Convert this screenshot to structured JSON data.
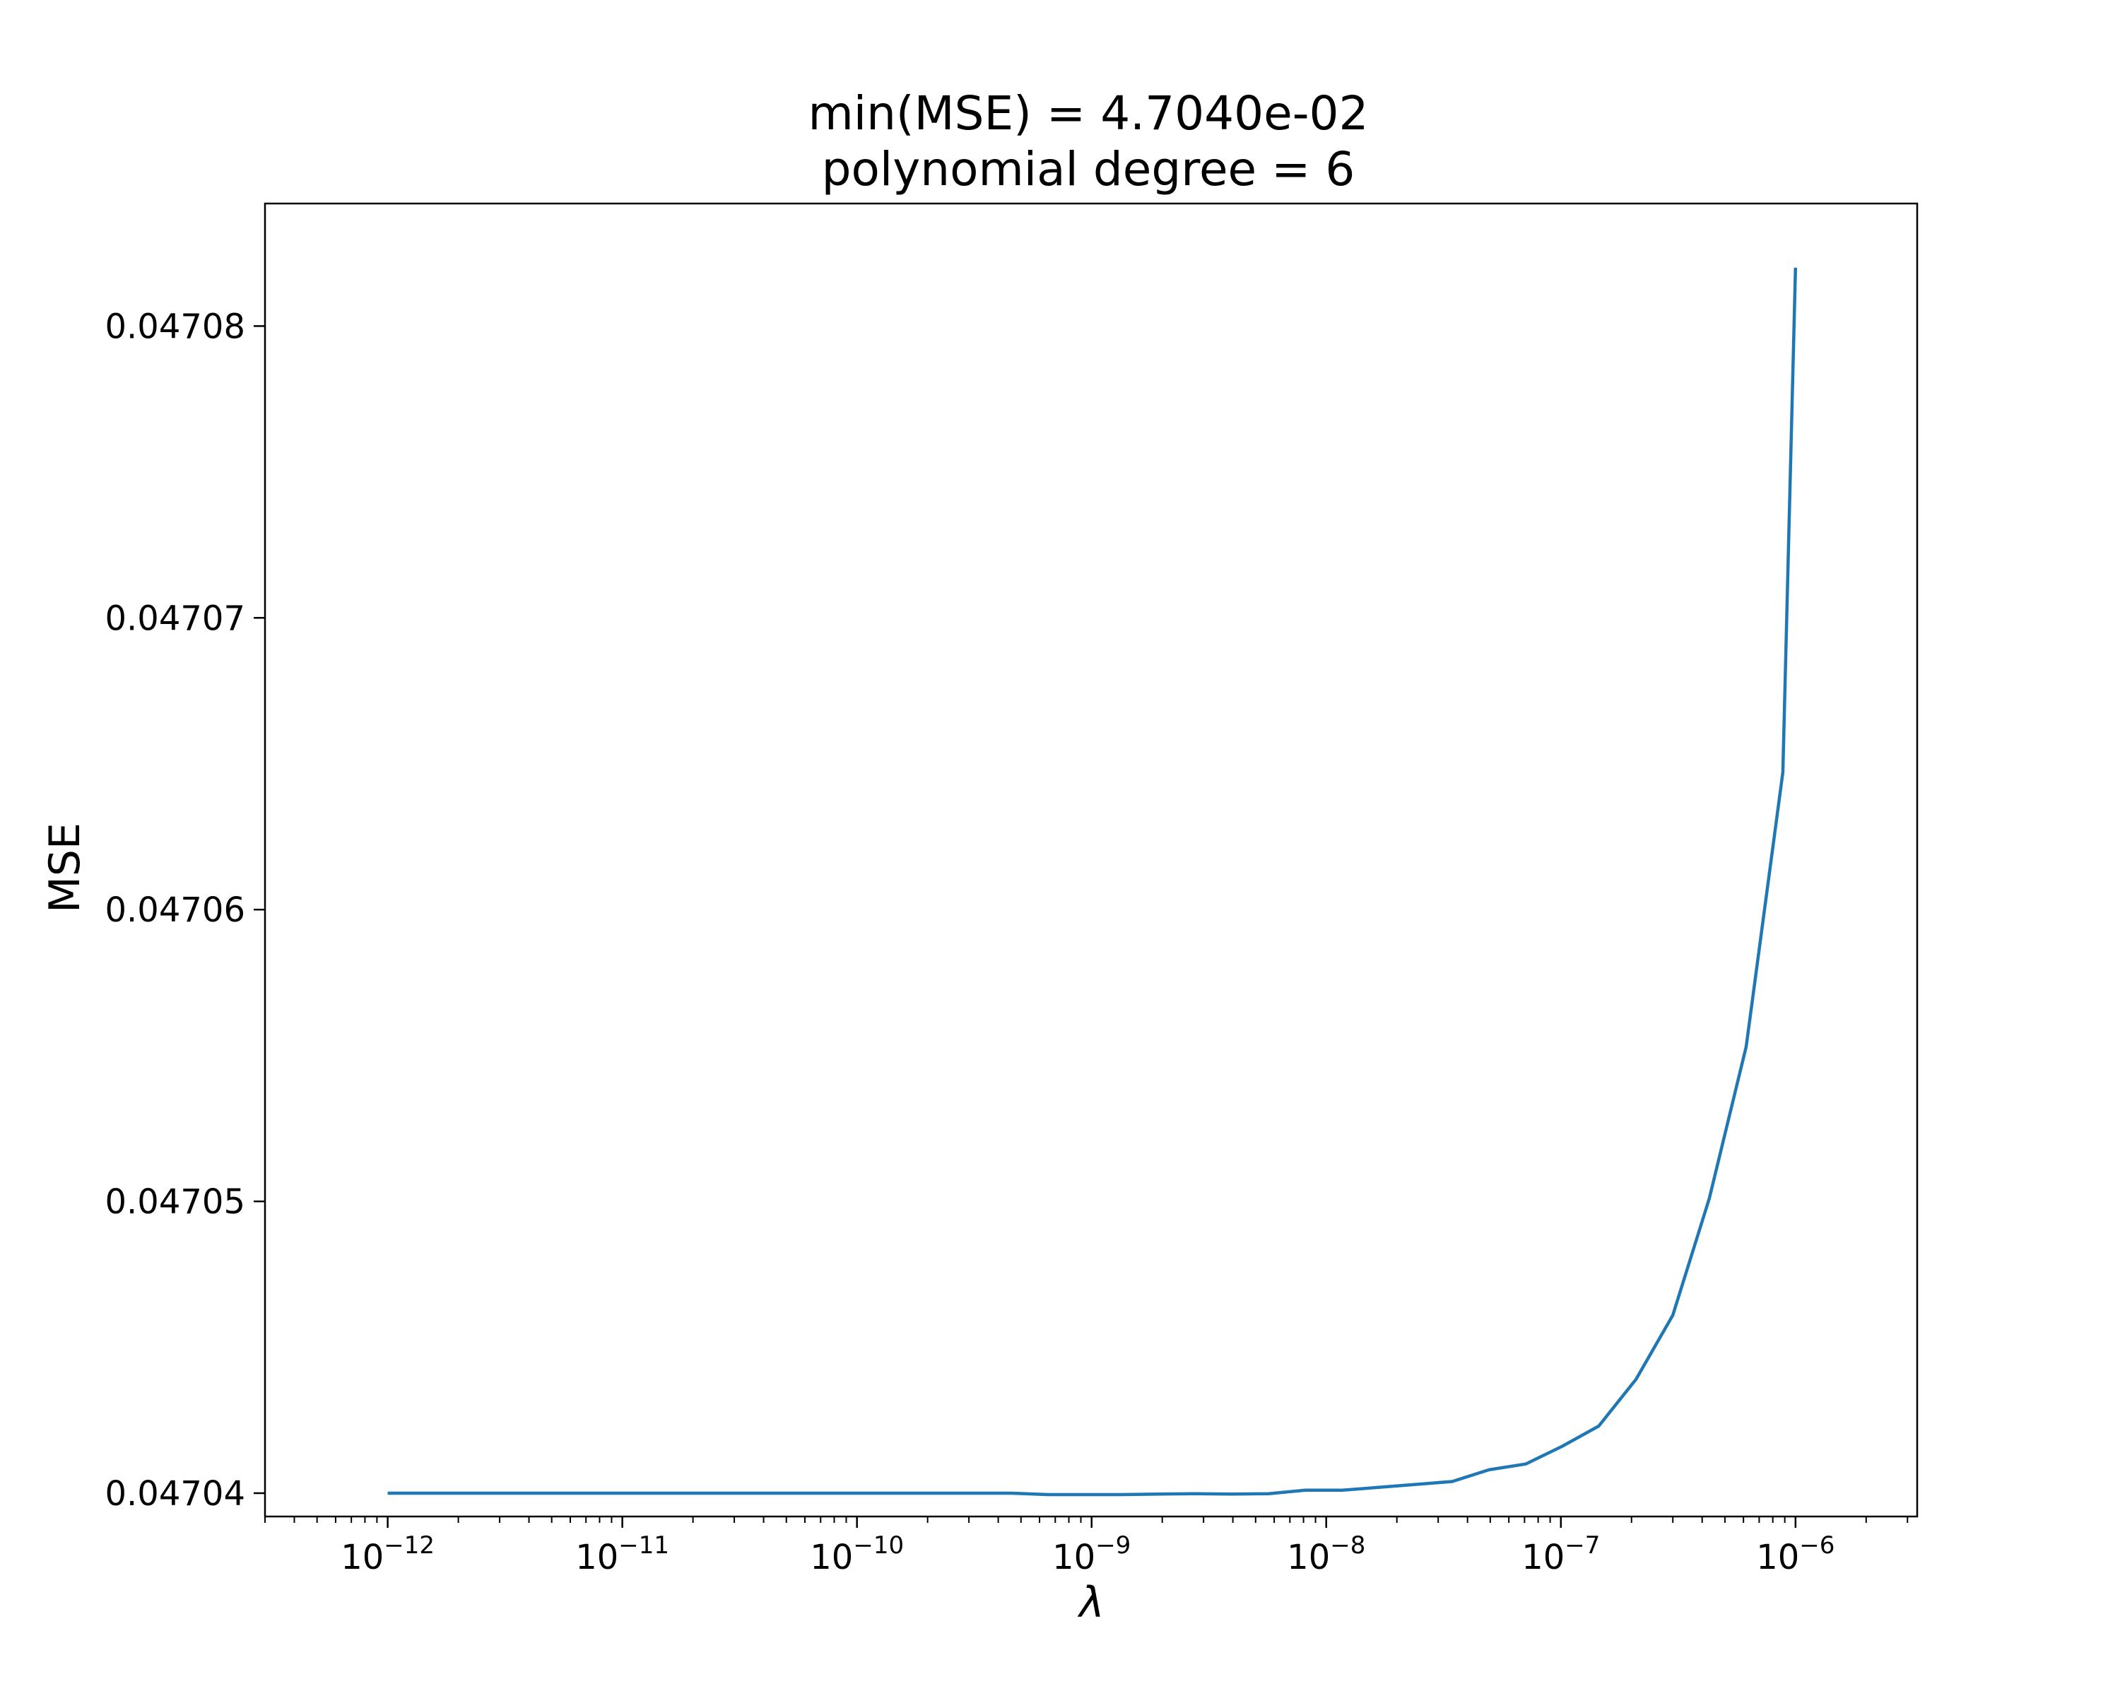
{
  "chart_data": {
    "type": "line",
    "title": [
      "min(MSE) = 4.7040e-02",
      "polynomial degree = 6"
    ],
    "xlabel": "λ",
    "ylabel": "MSE",
    "xscale": "log",
    "xlim": [
      3e-13,
      3.3e-06
    ],
    "ylim": [
      0.0470392,
      0.0470842
    ],
    "grid": false,
    "x_ticks": [
      {
        "base": "10",
        "exp": "−12",
        "value": 1e-12
      },
      {
        "base": "10",
        "exp": "−11",
        "value": 1e-11
      },
      {
        "base": "10",
        "exp": "−10",
        "value": 1e-10
      },
      {
        "base": "10",
        "exp": "−9",
        "value": 1e-09
      },
      {
        "base": "10",
        "exp": "−8",
        "value": 1e-08
      },
      {
        "base": "10",
        "exp": "−7",
        "value": 1e-07
      },
      {
        "base": "10",
        "exp": "−6",
        "value": 1e-06
      }
    ],
    "y_ticks": [
      {
        "label": "0.04704",
        "value": 0.04704
      },
      {
        "label": "0.04705",
        "value": 0.04705
      },
      {
        "label": "0.04706",
        "value": 0.04706
      },
      {
        "label": "0.04707",
        "value": 0.04707
      },
      {
        "label": "0.04708",
        "value": 0.04708
      }
    ],
    "series": [
      {
        "color": "#1f77b4",
        "x": [
          1e-12,
          1.43e-12,
          2.05e-12,
          2.94e-12,
          4.21e-12,
          6.04e-12,
          8.66e-12,
          1.24e-11,
          1.78e-11,
          2.55e-11,
          3.66e-11,
          5.25e-11,
          7.53e-11,
          1.08e-10,
          1.55e-10,
          2.22e-10,
          3.18e-10,
          4.56e-10,
          6.54e-10,
          9.37e-10,
          1.34e-09,
          1.93e-09,
          2.76e-09,
          3.96e-09,
          5.68e-09,
          8.14e-09,
          1.17e-08,
          1.67e-08,
          2.4e-08,
          3.44e-08,
          4.94e-08,
          7.08e-08,
          1.01e-07,
          1.45e-07,
          2.09e-07,
          3e-07,
          4.29e-07,
          6.16e-07,
          8.83e-07,
          1e-06
        ],
        "y": [
          0.04704,
          0.04704,
          0.04704,
          0.04704,
          0.04704,
          0.04704,
          0.04704,
          0.04704,
          0.04704,
          0.04704,
          0.04704,
          0.04704,
          0.04704,
          0.04704,
          0.04704,
          0.04704,
          0.04704,
          0.04704,
          0.04703995,
          0.04703995,
          0.04703995,
          0.04703997,
          0.04703998,
          0.04703997,
          0.04703998,
          0.0470401,
          0.0470401,
          0.0470402,
          0.0470403,
          0.0470404,
          0.0470408,
          0.047041,
          0.0470416,
          0.0470423,
          0.0470439,
          0.0470461,
          0.0470501,
          0.0470553,
          0.0470647,
          0.047082
        ]
      }
    ]
  }
}
